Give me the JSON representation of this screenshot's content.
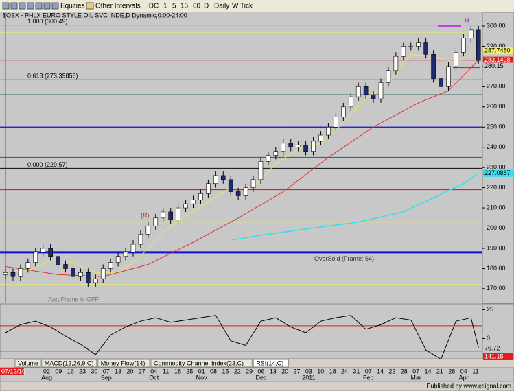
{
  "toolbar": {
    "items": [
      "Equities",
      "Other Intervals",
      "IDC",
      "1",
      "5",
      "15",
      "60",
      "D",
      "Daily",
      "W",
      "Tick"
    ]
  },
  "chart_data": {
    "type": "candlestick",
    "title": "$OSX - PHLX EURO STYLE OIL SVC INDE,D Dynamic,0:00-24:00",
    "candles": {
      "open": [
        177,
        178,
        176,
        180,
        183,
        188,
        190,
        186,
        182,
        180,
        176,
        178,
        173,
        175,
        180,
        183,
        186,
        188,
        192,
        197,
        201,
        205,
        208,
        204,
        210,
        212,
        214,
        217,
        222,
        226,
        224,
        218,
        216,
        220,
        224,
        233,
        236,
        238,
        242,
        240,
        241,
        238,
        243,
        246,
        250,
        255,
        260,
        265,
        270,
        266,
        264,
        272,
        278,
        285,
        290,
        290,
        292,
        286,
        274,
        270,
        280,
        287,
        294,
        298
      ],
      "high": [
        180,
        180,
        182,
        185,
        190,
        192,
        192,
        188,
        184,
        182,
        180,
        180,
        177,
        182,
        185,
        188,
        190,
        194,
        199,
        203,
        207,
        210,
        210,
        212,
        214,
        216,
        219,
        224,
        228,
        228,
        226,
        220,
        222,
        226,
        235,
        238,
        240,
        244,
        244,
        243,
        243,
        245,
        248,
        252,
        257,
        262,
        267,
        272,
        272,
        268,
        274,
        280,
        287,
        292,
        292,
        294,
        294,
        288,
        276,
        282,
        289,
        296,
        300,
        300
      ],
      "low": [
        175,
        174,
        174,
        178,
        181,
        186,
        184,
        180,
        178,
        174,
        174,
        171,
        171,
        173,
        178,
        181,
        184,
        186,
        190,
        195,
        199,
        203,
        202,
        202,
        208,
        210,
        212,
        215,
        220,
        222,
        216,
        214,
        214,
        218,
        222,
        231,
        234,
        236,
        238,
        238,
        236,
        236,
        241,
        244,
        248,
        253,
        258,
        263,
        264,
        262,
        262,
        270,
        276,
        283,
        288,
        288,
        284,
        272,
        268,
        268,
        278,
        285,
        292,
        281
      ],
      "close": [
        178,
        176,
        180,
        183,
        188,
        190,
        186,
        182,
        180,
        176,
        178,
        173,
        175,
        180,
        183,
        186,
        188,
        192,
        197,
        201,
        205,
        208,
        204,
        210,
        212,
        214,
        217,
        222,
        226,
        224,
        218,
        216,
        220,
        224,
        233,
        236,
        238,
        242,
        240,
        241,
        238,
        243,
        246,
        250,
        255,
        260,
        265,
        270,
        266,
        264,
        272,
        278,
        285,
        290,
        290,
        292,
        286,
        274,
        270,
        280,
        287,
        294,
        298,
        283
      ],
      "up_color": "#ffffff",
      "down_color": "#1c2a70"
    },
    "moving_averages": [
      {
        "color": "#e8e860",
        "x": [
          1,
          4,
          7,
          10,
          13,
          16,
          19,
          22,
          25,
          28,
          31,
          34,
          37,
          40,
          43,
          46,
          49,
          52,
          55,
          58,
          61,
          64
        ],
        "values": [
          178,
          179,
          184,
          183,
          178,
          178,
          186,
          198,
          206,
          213,
          220,
          220,
          232,
          239,
          242,
          252,
          264,
          272,
          286,
          285,
          282,
          287.748
        ]
      },
      {
        "color": "#e03030",
        "x": [
          1,
          8,
          14,
          20,
          26,
          32,
          38,
          44,
          50,
          56,
          60,
          64
        ],
        "values": [
          181,
          177,
          176,
          182,
          193,
          205,
          218,
          235,
          250,
          262,
          268,
          283.1498
        ]
      },
      {
        "color": "#30e0f0",
        "x": [
          31,
          36,
          42,
          48,
          54,
          58,
          62,
          64
        ],
        "values": [
          194,
          197,
          200,
          203,
          208,
          215,
          222,
          227.0887
        ]
      }
    ],
    "levels": [
      {
        "value": 300.49,
        "color": "#6a5acd"
      },
      {
        "value": 297,
        "color": "#f0f060"
      },
      {
        "value": 283.1498,
        "color": "#e02020"
      },
      {
        "value": 273.39856,
        "color": "#2e8b2e"
      },
      {
        "value": 266,
        "color": "#2f6f6f"
      },
      {
        "value": 250,
        "color": "#1010d0"
      },
      {
        "value": 235,
        "color": "#2f6f6f"
      },
      {
        "value": 229.57,
        "color": "#202020"
      },
      {
        "value": 219,
        "color": "#e02020"
      },
      {
        "value": 203,
        "color": "#f0f060"
      },
      {
        "value": 188,
        "color": "#1010d0"
      },
      {
        "value": 172,
        "color": "#f0f060"
      }
    ],
    "annotations": [
      "1.000 (300.49)",
      "0.618 (273.39856)",
      "0.000 (229.57)",
      "OverSold (Frame: 64)",
      "AutoFrame is OFF",
      "H",
      "(R)"
    ],
    "price_markers": [
      {
        "value": 287.748,
        "label": "287.7480",
        "color": "#f0f060"
      },
      {
        "value": 283.1498,
        "label": "283.1498",
        "color": "#e02020"
      },
      {
        "value": 280.15,
        "label": "280.15",
        "color": "#c8c8c8"
      },
      {
        "value": 227.0887,
        "label": "227.0887",
        "color": "#30e0f0"
      }
    ],
    "ylim": [
      163.5,
      303.4
    ],
    "yticks": [
      {
        "value": 170,
        "label": "170.00"
      },
      {
        "value": 180,
        "label": "180.00"
      },
      {
        "value": 190,
        "label": "190.00"
      },
      {
        "value": 200,
        "label": "200.00"
      },
      {
        "value": 210,
        "label": "210.00"
      },
      {
        "value": 220,
        "label": "220.00"
      },
      {
        "value": 230,
        "label": "230.00"
      },
      {
        "value": 240,
        "label": "240.00"
      },
      {
        "value": 250,
        "label": "250.00"
      },
      {
        "value": 260,
        "label": "260.00"
      },
      {
        "value": 270,
        "label": "270.00"
      },
      {
        "value": 280,
        "label": "280.00"
      },
      {
        "value": 290,
        "label": "290.00"
      },
      {
        "value": 300,
        "label": "300.00"
      }
    ],
    "date_labels": [
      "07/12/10",
      "02",
      "09",
      "16",
      "23",
      "30",
      "07",
      "13",
      "20",
      "27",
      "04",
      "11",
      "18",
      "25",
      "01",
      "08",
      "15",
      "22",
      "29",
      "06",
      "13",
      "20",
      "27",
      "03",
      "10",
      "18",
      "24",
      "31",
      "07",
      "14",
      "22",
      "28",
      "07",
      "14",
      "21",
      "28",
      "04",
      "11"
    ],
    "month_labels": [
      "Aug",
      "Sep",
      "Oct",
      "Nov",
      "Dec",
      "2011",
      "Feb",
      "Mar",
      "Apr"
    ],
    "indicator": {
      "color": "#000000",
      "x": [
        1,
        3,
        5,
        7,
        9,
        11,
        13,
        15,
        17,
        19,
        21,
        23,
        25,
        27,
        29,
        31,
        33,
        35,
        37,
        39,
        41,
        43,
        45,
        47,
        49,
        51,
        53,
        55,
        57,
        59,
        61,
        63,
        64
      ],
      "values": [
        5,
        12,
        15,
        10,
        2,
        -5,
        -14,
        3,
        10,
        15,
        18,
        14,
        16,
        18,
        20,
        -2,
        -6,
        15,
        18,
        10,
        5,
        15,
        18,
        20,
        8,
        12,
        18,
        16,
        -10,
        -18,
        15,
        18,
        -8
      ],
      "ylim": [
        -20,
        30
      ],
      "yticks": [
        0,
        25
      ],
      "levels": [
        {
          "value": 11,
          "color": "#d02020"
        },
        {
          "value": -11,
          "color": "#20a020"
        }
      ],
      "readouts": [
        {
          "label": "76.72",
          "color": "#c8c8c8"
        },
        {
          "label": "141.15",
          "color": "#e02020"
        }
      ]
    },
    "tabs": [
      "Volume",
      "MACD(12,26,9,C)",
      "Money Flow(14)",
      "Commodity Channel Index(23,C)",
      "RSI(14,C)"
    ]
  },
  "status": {
    "text": "Published by www.esignal.com"
  }
}
